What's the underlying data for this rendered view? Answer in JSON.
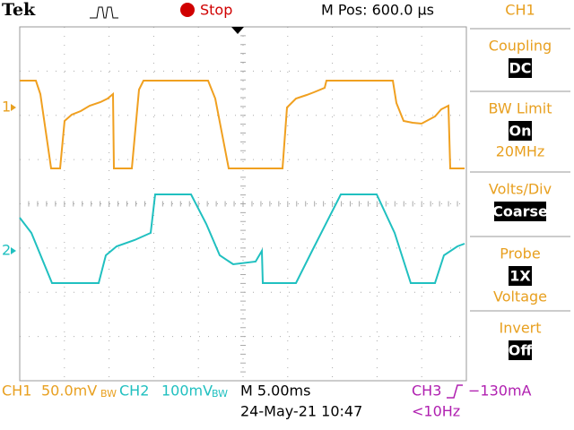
{
  "header": {
    "brand": "Tek",
    "status": "Stop",
    "position": "M Pos: 600.0 µs"
  },
  "menu": {
    "title": "CH1",
    "items": [
      {
        "label": "Coupling",
        "value": "DC"
      },
      {
        "label": "BW Limit",
        "value": "On",
        "note": "20MHz"
      },
      {
        "label": "Volts/Div",
        "value": "Coarse"
      },
      {
        "label": "Probe",
        "value": "1X",
        "note": "Voltage"
      },
      {
        "label": "Invert",
        "value": "Off"
      }
    ]
  },
  "markers": {
    "ch1": "1",
    "ch2": "2"
  },
  "footer": {
    "ch1_name": "CH1",
    "ch1_scale": "50.0mV",
    "ch1_bw": "BW",
    "ch2_name": "CH2",
    "ch2_scale": "100mV",
    "ch2_bw": "BW",
    "timebase": "M 5.00ms",
    "trigger_source": "CH3",
    "trigger_level": "−130mA",
    "date": "24-May-21 10:47",
    "frequency": "<10Hz"
  }
}
